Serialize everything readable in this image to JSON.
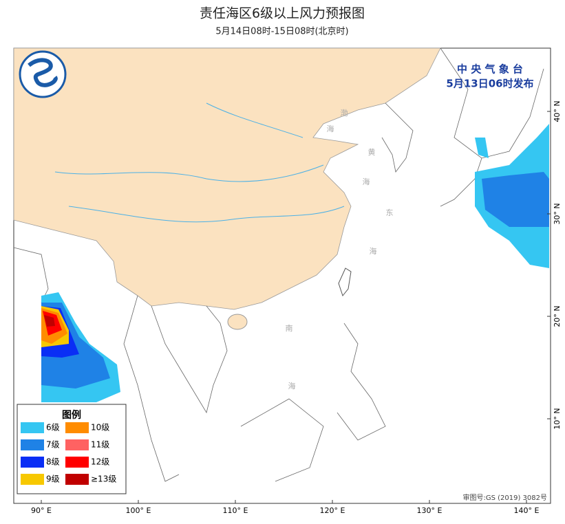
{
  "header": {
    "title": "责任海区6级以上风力预报图",
    "subtitle": "5月14日08时-15日08时(北京时)"
  },
  "issuer": {
    "agency": "中 央 气 象 台",
    "issue_time": "5月13日06时发布"
  },
  "longitude_labels": [
    "90° E",
    "100° E",
    "110° E",
    "120° E",
    "130° E",
    "140° E"
  ],
  "latitude_labels": [
    "40° N",
    "30° N",
    "20° N",
    "10° N"
  ],
  "sea_labels": [
    "渤",
    "海",
    "黄",
    "海",
    "东",
    "海",
    "南",
    "海"
  ],
  "legend": {
    "title": "图例",
    "items": [
      {
        "label": "6级",
        "color": "#35c6f2"
      },
      {
        "label": "10级",
        "color": "#ff8c00"
      },
      {
        "label": "7级",
        "color": "#1f82e6"
      },
      {
        "label": "11级",
        "color": "#ff6262"
      },
      {
        "label": "8级",
        "color": "#0a2ef5"
      },
      {
        "label": "12级",
        "color": "#ff0000"
      },
      {
        "label": "9级",
        "color": "#f7c800"
      },
      {
        "label": "≥13级",
        "color": "#c00000"
      }
    ]
  },
  "review_number": "审图号:GS (2019) 3082号"
}
